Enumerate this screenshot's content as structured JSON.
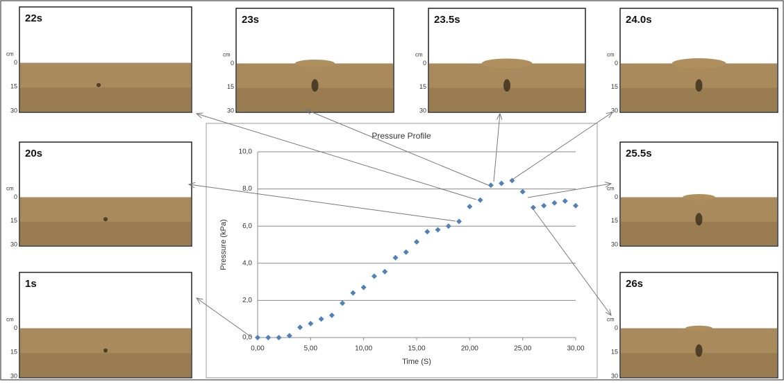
{
  "chart_data": {
    "type": "scatter",
    "title": "Pressure Profile",
    "x_label": "Time (S)",
    "y_label": "Pressure (kPa)",
    "color": "#4f81bd",
    "grid": true,
    "x": [
      0,
      1,
      2,
      3,
      4,
      5,
      6,
      7,
      8,
      9,
      10,
      11,
      12,
      13,
      14,
      15,
      16,
      17,
      18,
      19,
      20,
      21,
      22,
      23,
      24,
      25,
      26,
      27,
      28,
      29,
      30
    ],
    "values": [
      0,
      0,
      0,
      0.1,
      0.55,
      0.75,
      1.0,
      1.2,
      1.85,
      2.4,
      2.7,
      3.3,
      3.55,
      4.3,
      4.6,
      5.15,
      5.7,
      5.8,
      6.0,
      6.25,
      7.05,
      7.4,
      8.2,
      8.3,
      8.45,
      7.85,
      7.0,
      7.1,
      7.25,
      7.35,
      7.1
    ],
    "xlim": [
      0,
      30
    ],
    "xticks": [
      {
        "value": 0,
        "label": "0,00"
      },
      {
        "value": 5,
        "label": "5,00"
      },
      {
        "value": 10,
        "label": "10,00"
      },
      {
        "value": 15,
        "label": "15,00"
      },
      {
        "value": 20,
        "label": "20,00"
      },
      {
        "value": 25,
        "label": "25,00"
      },
      {
        "value": 30,
        "label": "30,00"
      }
    ],
    "ylim": [
      0,
      10
    ],
    "yticks": [
      {
        "value": 0,
        "label": "0,0"
      },
      {
        "value": 2,
        "label": "2,0"
      },
      {
        "value": 4,
        "label": "4,0"
      },
      {
        "value": 6,
        "label": "6,0"
      },
      {
        "value": 8,
        "label": "8,0"
      },
      {
        "value": 10,
        "label": "10,0"
      }
    ]
  },
  "panel_scale": {
    "unit": "cm",
    "ticks": [
      "0",
      "15",
      "30"
    ]
  },
  "panels": [
    {
      "label": "22s"
    },
    {
      "label": "23s"
    },
    {
      "label": "23.5s"
    },
    {
      "label": "24.0s"
    },
    {
      "label": "20s"
    },
    {
      "label": "25.5s"
    },
    {
      "label": "1s"
    },
    {
      "label": "26s"
    }
  ]
}
